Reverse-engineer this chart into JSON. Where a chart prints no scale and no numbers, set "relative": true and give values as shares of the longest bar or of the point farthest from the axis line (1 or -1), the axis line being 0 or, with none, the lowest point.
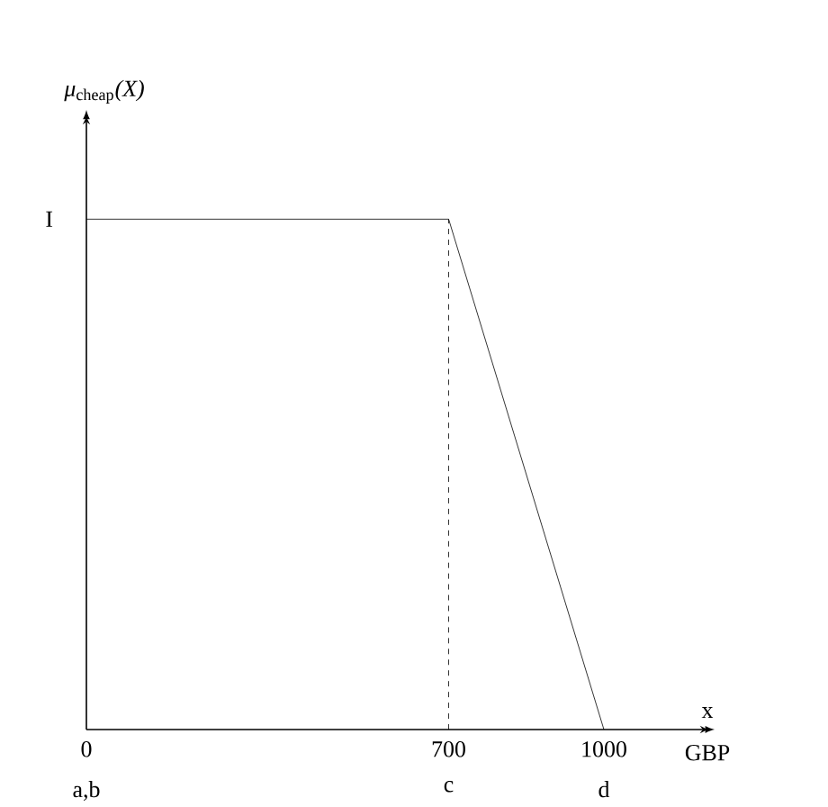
{
  "chart_data": {
    "type": "line",
    "relative": true,
    "ylabel": "*μ*$_{cheap}$*(X)*",
    "xlabel": "x",
    "x": [
      0,
      700,
      1000
    ],
    "values": [
      1,
      1,
      0
    ],
    "color": "#000000",
    "line_style": "solid",
    "marker": "none",
    "xlim": [
      0,
      1200
    ],
    "xticks": [
      0,
      700,
      1000
    ],
    "ref_lines": [
      {
        "axis": "x",
        "value": 700,
        "line_style": "dashed",
        "color": "#000000"
      }
    ],
    "annotations": [
      "I",
      "a,b",
      "c",
      "d",
      "GBP"
    ]
  }
}
